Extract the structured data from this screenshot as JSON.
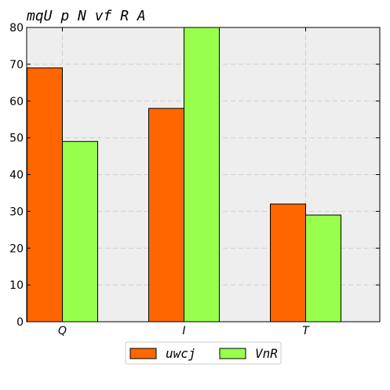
{
  "chart_data": {
    "type": "bar",
    "title": "mqU p N vf R A",
    "categories": [
      "Q",
      "I",
      "T"
    ],
    "series": [
      {
        "name": "uwcj",
        "values": [
          69,
          58,
          32
        ],
        "color": "#ff6600"
      },
      {
        "name": "VnR",
        "values": [
          49,
          80,
          29
        ],
        "color": "#99ff4d"
      }
    ],
    "xlabel": "",
    "ylabel": "",
    "ylim": [
      0,
      80
    ],
    "yticks": [
      0,
      10,
      20,
      30,
      40,
      50,
      60,
      70,
      80
    ],
    "grid": true,
    "legend_position": "bottom-center",
    "background_color": "#eeeeee"
  }
}
